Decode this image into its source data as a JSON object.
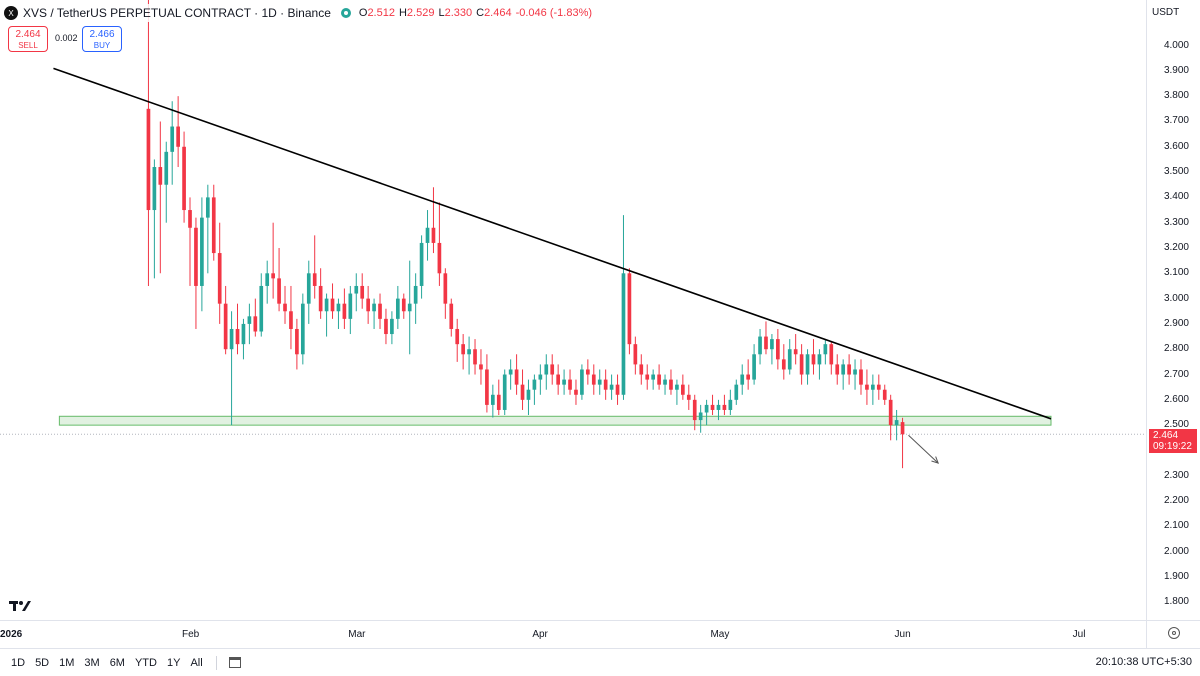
{
  "legend": {
    "symbol": "XVS / TetherUS PERPETUAL CONTRACT · 1D · Binance",
    "logo_text": "X",
    "open_key": "O",
    "open": "2.512",
    "high_key": "H",
    "high": "2.529",
    "low_key": "L",
    "low": "2.330",
    "close_key": "C",
    "close": "2.464",
    "change": "-0.046 (-1.83%)"
  },
  "trade": {
    "sell_price": "2.464",
    "sell_label": "SELL",
    "spread": "0.002",
    "buy_price": "2.466",
    "buy_label": "BUY"
  },
  "price_axis": {
    "currency": "USDT",
    "current_price": "2.464",
    "countdown": "09:19:22"
  },
  "time_axis": {
    "year_label": "2026"
  },
  "bottom_bar": {
    "ranges": [
      "1D",
      "5D",
      "1M",
      "3M",
      "6M",
      "YTD",
      "1Y",
      "All"
    ],
    "clock": "20:10:38 UTC+5:30"
  },
  "colors": {
    "up": "#26a69a",
    "down": "#f23645",
    "trendline": "#000000",
    "support_zone": "#c8e6c9"
  },
  "chart_data": {
    "type": "candlestick",
    "title": "XVS / TetherUS PERPETUAL CONTRACT · 1D · Binance",
    "y_axis": {
      "ticks": [
        1.8,
        1.9,
        2.0,
        2.1,
        2.2,
        2.3,
        2.4,
        2.5,
        2.6,
        2.7,
        2.8,
        2.9,
        3.0,
        3.1,
        3.2,
        3.3,
        3.4,
        3.5,
        3.6,
        3.7,
        3.8,
        3.9,
        4.0
      ],
      "ylim": [
        1.73,
        4.18
      ]
    },
    "x_axis": {
      "ticks": [
        {
          "label": "2026",
          "date": "2026-01-01"
        },
        {
          "label": "Feb",
          "date": "2026-02-01"
        },
        {
          "label": "Mar",
          "date": "2026-03-01"
        },
        {
          "label": "Apr",
          "date": "2026-04-01"
        },
        {
          "label": "May",
          "date": "2026-05-01"
        },
        {
          "label": "Jun",
          "date": "2026-06-01"
        },
        {
          "label": "Jul",
          "date": "2026-07-01"
        }
      ],
      "xlim": [
        "2025-12-31",
        "2026-07-12"
      ]
    },
    "candles": [
      {
        "date": "2026-01-25",
        "o": 3.75,
        "h": 4.5,
        "l": 3.05,
        "c": 3.35
      },
      {
        "date": "2026-01-26",
        "o": 3.35,
        "h": 3.55,
        "l": 3.08,
        "c": 3.52
      },
      {
        "date": "2026-01-27",
        "o": 3.52,
        "h": 3.7,
        "l": 3.1,
        "c": 3.45
      },
      {
        "date": "2026-01-28",
        "o": 3.45,
        "h": 3.62,
        "l": 3.3,
        "c": 3.58
      },
      {
        "date": "2026-01-29",
        "o": 3.58,
        "h": 3.78,
        "l": 3.45,
        "c": 3.68
      },
      {
        "date": "2026-01-30",
        "o": 3.68,
        "h": 3.8,
        "l": 3.52,
        "c": 3.6
      },
      {
        "date": "2026-01-31",
        "o": 3.6,
        "h": 3.66,
        "l": 3.3,
        "c": 3.35
      },
      {
        "date": "2026-02-01",
        "o": 3.35,
        "h": 3.4,
        "l": 3.05,
        "c": 3.28
      },
      {
        "date": "2026-02-02",
        "o": 3.28,
        "h": 3.32,
        "l": 2.88,
        "c": 3.05
      },
      {
        "date": "2026-02-03",
        "o": 3.05,
        "h": 3.4,
        "l": 2.95,
        "c": 3.32
      },
      {
        "date": "2026-02-04",
        "o": 3.32,
        "h": 3.45,
        "l": 3.1,
        "c": 3.4
      },
      {
        "date": "2026-02-05",
        "o": 3.4,
        "h": 3.45,
        "l": 3.15,
        "c": 3.18
      },
      {
        "date": "2026-02-06",
        "o": 3.18,
        "h": 3.3,
        "l": 2.9,
        "c": 2.98
      },
      {
        "date": "2026-02-07",
        "o": 2.98,
        "h": 3.05,
        "l": 2.78,
        "c": 2.8
      },
      {
        "date": "2026-02-08",
        "o": 2.8,
        "h": 2.95,
        "l": 2.5,
        "c": 2.88
      },
      {
        "date": "2026-02-09",
        "o": 2.88,
        "h": 2.98,
        "l": 2.78,
        "c": 2.82
      },
      {
        "date": "2026-02-10",
        "o": 2.82,
        "h": 2.92,
        "l": 2.76,
        "c": 2.9
      },
      {
        "date": "2026-02-11",
        "o": 2.9,
        "h": 2.98,
        "l": 2.82,
        "c": 2.93
      },
      {
        "date": "2026-02-12",
        "o": 2.93,
        "h": 3.0,
        "l": 2.85,
        "c": 2.87
      },
      {
        "date": "2026-02-13",
        "o": 2.87,
        "h": 3.1,
        "l": 2.85,
        "c": 3.05
      },
      {
        "date": "2026-02-14",
        "o": 3.05,
        "h": 3.15,
        "l": 2.98,
        "c": 3.1
      },
      {
        "date": "2026-02-15",
        "o": 3.1,
        "h": 3.3,
        "l": 3.0,
        "c": 3.08
      },
      {
        "date": "2026-02-16",
        "o": 3.08,
        "h": 3.2,
        "l": 2.95,
        "c": 2.98
      },
      {
        "date": "2026-02-17",
        "o": 2.98,
        "h": 3.05,
        "l": 2.9,
        "c": 2.95
      },
      {
        "date": "2026-02-18",
        "o": 2.95,
        "h": 3.05,
        "l": 2.8,
        "c": 2.88
      },
      {
        "date": "2026-02-19",
        "o": 2.88,
        "h": 2.92,
        "l": 2.72,
        "c": 2.78
      },
      {
        "date": "2026-02-20",
        "o": 2.78,
        "h": 3.02,
        "l": 2.74,
        "c": 2.98
      },
      {
        "date": "2026-02-21",
        "o": 2.98,
        "h": 3.15,
        "l": 2.9,
        "c": 3.1
      },
      {
        "date": "2026-02-22",
        "o": 3.1,
        "h": 3.25,
        "l": 3.0,
        "c": 3.05
      },
      {
        "date": "2026-02-23",
        "o": 3.05,
        "h": 3.12,
        "l": 2.92,
        "c": 2.95
      },
      {
        "date": "2026-02-24",
        "o": 2.95,
        "h": 3.02,
        "l": 2.85,
        "c": 3.0
      },
      {
        "date": "2026-02-25",
        "o": 3.0,
        "h": 3.06,
        "l": 2.92,
        "c": 2.95
      },
      {
        "date": "2026-02-26",
        "o": 2.95,
        "h": 3.0,
        "l": 2.88,
        "c": 2.98
      },
      {
        "date": "2026-02-27",
        "o": 2.98,
        "h": 3.04,
        "l": 2.88,
        "c": 2.92
      },
      {
        "date": "2026-02-28",
        "o": 2.92,
        "h": 3.05,
        "l": 2.86,
        "c": 3.02
      },
      {
        "date": "2026-03-01",
        "o": 3.02,
        "h": 3.1,
        "l": 2.95,
        "c": 3.05
      },
      {
        "date": "2026-03-02",
        "o": 3.05,
        "h": 3.1,
        "l": 2.96,
        "c": 3.0
      },
      {
        "date": "2026-03-03",
        "o": 3.0,
        "h": 3.05,
        "l": 2.9,
        "c": 2.95
      },
      {
        "date": "2026-03-04",
        "o": 2.95,
        "h": 3.0,
        "l": 2.88,
        "c": 2.98
      },
      {
        "date": "2026-03-05",
        "o": 2.98,
        "h": 3.02,
        "l": 2.88,
        "c": 2.92
      },
      {
        "date": "2026-03-06",
        "o": 2.92,
        "h": 2.96,
        "l": 2.82,
        "c": 2.86
      },
      {
        "date": "2026-03-07",
        "o": 2.86,
        "h": 2.95,
        "l": 2.82,
        "c": 2.92
      },
      {
        "date": "2026-03-08",
        "o": 2.92,
        "h": 3.05,
        "l": 2.88,
        "c": 3.0
      },
      {
        "date": "2026-03-09",
        "o": 3.0,
        "h": 3.02,
        "l": 2.92,
        "c": 2.95
      },
      {
        "date": "2026-03-10",
        "o": 2.95,
        "h": 3.15,
        "l": 2.78,
        "c": 2.98
      },
      {
        "date": "2026-03-11",
        "o": 2.98,
        "h": 3.1,
        "l": 2.9,
        "c": 3.05
      },
      {
        "date": "2026-03-12",
        "o": 3.05,
        "h": 3.25,
        "l": 3.0,
        "c": 3.22
      },
      {
        "date": "2026-03-13",
        "o": 3.22,
        "h": 3.35,
        "l": 3.15,
        "c": 3.28
      },
      {
        "date": "2026-03-14",
        "o": 3.28,
        "h": 3.44,
        "l": 3.18,
        "c": 3.22
      },
      {
        "date": "2026-03-15",
        "o": 3.22,
        "h": 3.38,
        "l": 3.05,
        "c": 3.1
      },
      {
        "date": "2026-03-16",
        "o": 3.1,
        "h": 3.12,
        "l": 2.92,
        "c": 2.98
      },
      {
        "date": "2026-03-17",
        "o": 2.98,
        "h": 3.0,
        "l": 2.85,
        "c": 2.88
      },
      {
        "date": "2026-03-18",
        "o": 2.88,
        "h": 2.92,
        "l": 2.75,
        "c": 2.82
      },
      {
        "date": "2026-03-19",
        "o": 2.82,
        "h": 2.86,
        "l": 2.72,
        "c": 2.78
      },
      {
        "date": "2026-03-20",
        "o": 2.78,
        "h": 2.85,
        "l": 2.7,
        "c": 2.8
      },
      {
        "date": "2026-03-21",
        "o": 2.8,
        "h": 2.84,
        "l": 2.7,
        "c": 2.74
      },
      {
        "date": "2026-03-22",
        "o": 2.74,
        "h": 2.8,
        "l": 2.66,
        "c": 2.72
      },
      {
        "date": "2026-03-23",
        "o": 2.72,
        "h": 2.78,
        "l": 2.55,
        "c": 2.58
      },
      {
        "date": "2026-03-24",
        "o": 2.58,
        "h": 2.66,
        "l": 2.53,
        "c": 2.62
      },
      {
        "date": "2026-03-25",
        "o": 2.62,
        "h": 2.68,
        "l": 2.54,
        "c": 2.56
      },
      {
        "date": "2026-03-26",
        "o": 2.56,
        "h": 2.72,
        "l": 2.54,
        "c": 2.7
      },
      {
        "date": "2026-03-27",
        "o": 2.7,
        "h": 2.76,
        "l": 2.64,
        "c": 2.72
      },
      {
        "date": "2026-03-28",
        "o": 2.72,
        "h": 2.78,
        "l": 2.62,
        "c": 2.66
      },
      {
        "date": "2026-03-29",
        "o": 2.66,
        "h": 2.72,
        "l": 2.56,
        "c": 2.6
      },
      {
        "date": "2026-03-30",
        "o": 2.6,
        "h": 2.68,
        "l": 2.54,
        "c": 2.64
      },
      {
        "date": "2026-03-31",
        "o": 2.64,
        "h": 2.7,
        "l": 2.58,
        "c": 2.68
      },
      {
        "date": "2026-04-01",
        "o": 2.68,
        "h": 2.74,
        "l": 2.62,
        "c": 2.7
      },
      {
        "date": "2026-04-02",
        "o": 2.7,
        "h": 2.78,
        "l": 2.64,
        "c": 2.74
      },
      {
        "date": "2026-04-03",
        "o": 2.74,
        "h": 2.78,
        "l": 2.66,
        "c": 2.7
      },
      {
        "date": "2026-04-04",
        "o": 2.7,
        "h": 2.74,
        "l": 2.62,
        "c": 2.66
      },
      {
        "date": "2026-04-05",
        "o": 2.66,
        "h": 2.72,
        "l": 2.62,
        "c": 2.68
      },
      {
        "date": "2026-04-06",
        "o": 2.68,
        "h": 2.72,
        "l": 2.62,
        "c": 2.64
      },
      {
        "date": "2026-04-07",
        "o": 2.64,
        "h": 2.68,
        "l": 2.58,
        "c": 2.62
      },
      {
        "date": "2026-04-08",
        "o": 2.62,
        "h": 2.74,
        "l": 2.6,
        "c": 2.72
      },
      {
        "date": "2026-04-09",
        "o": 2.72,
        "h": 2.76,
        "l": 2.66,
        "c": 2.7
      },
      {
        "date": "2026-04-10",
        "o": 2.7,
        "h": 2.74,
        "l": 2.62,
        "c": 2.66
      },
      {
        "date": "2026-04-11",
        "o": 2.66,
        "h": 2.72,
        "l": 2.62,
        "c": 2.68
      },
      {
        "date": "2026-04-12",
        "o": 2.68,
        "h": 2.72,
        "l": 2.6,
        "c": 2.64
      },
      {
        "date": "2026-04-13",
        "o": 2.64,
        "h": 2.7,
        "l": 2.6,
        "c": 2.66
      },
      {
        "date": "2026-04-14",
        "o": 2.66,
        "h": 2.7,
        "l": 2.58,
        "c": 2.62
      },
      {
        "date": "2026-04-15",
        "o": 2.62,
        "h": 3.33,
        "l": 2.6,
        "c": 3.1
      },
      {
        "date": "2026-04-16",
        "o": 3.1,
        "h": 3.12,
        "l": 2.78,
        "c": 2.82
      },
      {
        "date": "2026-04-17",
        "o": 2.82,
        "h": 2.85,
        "l": 2.7,
        "c": 2.74
      },
      {
        "date": "2026-04-18",
        "o": 2.74,
        "h": 2.78,
        "l": 2.66,
        "c": 2.7
      },
      {
        "date": "2026-04-19",
        "o": 2.7,
        "h": 2.74,
        "l": 2.64,
        "c": 2.68
      },
      {
        "date": "2026-04-20",
        "o": 2.68,
        "h": 2.72,
        "l": 2.64,
        "c": 2.7
      },
      {
        "date": "2026-04-21",
        "o": 2.7,
        "h": 2.74,
        "l": 2.64,
        "c": 2.66
      },
      {
        "date": "2026-04-22",
        "o": 2.66,
        "h": 2.7,
        "l": 2.62,
        "c": 2.68
      },
      {
        "date": "2026-04-23",
        "o": 2.68,
        "h": 2.72,
        "l": 2.62,
        "c": 2.64
      },
      {
        "date": "2026-04-24",
        "o": 2.64,
        "h": 2.68,
        "l": 2.58,
        "c": 2.66
      },
      {
        "date": "2026-04-25",
        "o": 2.66,
        "h": 2.7,
        "l": 2.6,
        "c": 2.62
      },
      {
        "date": "2026-04-26",
        "o": 2.62,
        "h": 2.66,
        "l": 2.56,
        "c": 2.6
      },
      {
        "date": "2026-04-27",
        "o": 2.6,
        "h": 2.62,
        "l": 2.48,
        "c": 2.52
      },
      {
        "date": "2026-04-28",
        "o": 2.52,
        "h": 2.58,
        "l": 2.47,
        "c": 2.55
      },
      {
        "date": "2026-04-29",
        "o": 2.55,
        "h": 2.6,
        "l": 2.5,
        "c": 2.58
      },
      {
        "date": "2026-04-30",
        "o": 2.58,
        "h": 2.62,
        "l": 2.54,
        "c": 2.56
      },
      {
        "date": "2026-05-01",
        "o": 2.56,
        "h": 2.6,
        "l": 2.52,
        "c": 2.58
      },
      {
        "date": "2026-05-02",
        "o": 2.58,
        "h": 2.62,
        "l": 2.54,
        "c": 2.56
      },
      {
        "date": "2026-05-03",
        "o": 2.56,
        "h": 2.64,
        "l": 2.54,
        "c": 2.6
      },
      {
        "date": "2026-05-04",
        "o": 2.6,
        "h": 2.68,
        "l": 2.58,
        "c": 2.66
      },
      {
        "date": "2026-05-05",
        "o": 2.66,
        "h": 2.74,
        "l": 2.62,
        "c": 2.7
      },
      {
        "date": "2026-05-06",
        "o": 2.7,
        "h": 2.76,
        "l": 2.64,
        "c": 2.68
      },
      {
        "date": "2026-05-07",
        "o": 2.68,
        "h": 2.82,
        "l": 2.66,
        "c": 2.78
      },
      {
        "date": "2026-05-08",
        "o": 2.78,
        "h": 2.88,
        "l": 2.74,
        "c": 2.85
      },
      {
        "date": "2026-05-09",
        "o": 2.85,
        "h": 2.91,
        "l": 2.78,
        "c": 2.8
      },
      {
        "date": "2026-05-10",
        "o": 2.8,
        "h": 2.86,
        "l": 2.74,
        "c": 2.84
      },
      {
        "date": "2026-05-11",
        "o": 2.84,
        "h": 2.88,
        "l": 2.72,
        "c": 2.76
      },
      {
        "date": "2026-05-12",
        "o": 2.76,
        "h": 2.82,
        "l": 2.68,
        "c": 2.72
      },
      {
        "date": "2026-05-13",
        "o": 2.72,
        "h": 2.84,
        "l": 2.7,
        "c": 2.8
      },
      {
        "date": "2026-05-14",
        "o": 2.8,
        "h": 2.86,
        "l": 2.74,
        "c": 2.78
      },
      {
        "date": "2026-05-15",
        "o": 2.78,
        "h": 2.82,
        "l": 2.66,
        "c": 2.7
      },
      {
        "date": "2026-05-16",
        "o": 2.7,
        "h": 2.8,
        "l": 2.66,
        "c": 2.78
      },
      {
        "date": "2026-05-17",
        "o": 2.78,
        "h": 2.84,
        "l": 2.7,
        "c": 2.74
      },
      {
        "date": "2026-05-18",
        "o": 2.74,
        "h": 2.8,
        "l": 2.68,
        "c": 2.78
      },
      {
        "date": "2026-05-19",
        "o": 2.78,
        "h": 2.84,
        "l": 2.74,
        "c": 2.82
      },
      {
        "date": "2026-05-20",
        "o": 2.82,
        "h": 2.83,
        "l": 2.7,
        "c": 2.74
      },
      {
        "date": "2026-05-21",
        "o": 2.74,
        "h": 2.78,
        "l": 2.66,
        "c": 2.7
      },
      {
        "date": "2026-05-22",
        "o": 2.7,
        "h": 2.76,
        "l": 2.64,
        "c": 2.74
      },
      {
        "date": "2026-05-23",
        "o": 2.74,
        "h": 2.78,
        "l": 2.66,
        "c": 2.7
      },
      {
        "date": "2026-05-24",
        "o": 2.7,
        "h": 2.76,
        "l": 2.64,
        "c": 2.72
      },
      {
        "date": "2026-05-25",
        "o": 2.72,
        "h": 2.76,
        "l": 2.62,
        "c": 2.66
      },
      {
        "date": "2026-05-26",
        "o": 2.66,
        "h": 2.72,
        "l": 2.58,
        "c": 2.64
      },
      {
        "date": "2026-05-27",
        "o": 2.64,
        "h": 2.7,
        "l": 2.58,
        "c": 2.66
      },
      {
        "date": "2026-05-28",
        "o": 2.66,
        "h": 2.7,
        "l": 2.6,
        "c": 2.64
      },
      {
        "date": "2026-05-29",
        "o": 2.64,
        "h": 2.66,
        "l": 2.58,
        "c": 2.6
      },
      {
        "date": "2026-05-30",
        "o": 2.6,
        "h": 2.62,
        "l": 2.44,
        "c": 2.5
      },
      {
        "date": "2026-05-31",
        "o": 2.5,
        "h": 2.56,
        "l": 2.44,
        "c": 2.52
      },
      {
        "date": "2026-06-01",
        "o": 2.512,
        "h": 2.529,
        "l": 2.33,
        "c": 2.464
      }
    ],
    "trendline": {
      "from": {
        "date": "2026-01-09",
        "price": 3.91
      },
      "to": {
        "date": "2026-06-26",
        "price": 2.525
      }
    },
    "support_zone": {
      "from_date": "2026-01-10",
      "to_date": "2026-06-26",
      "price_low": 2.5,
      "price_high": 2.535
    },
    "projection_arrow": {
      "from": {
        "date": "2026-06-02",
        "price": 2.46
      },
      "to": {
        "date": "2026-06-07",
        "price": 2.35
      }
    },
    "current_price": 2.464,
    "xlabel": "",
    "ylabel": ""
  }
}
